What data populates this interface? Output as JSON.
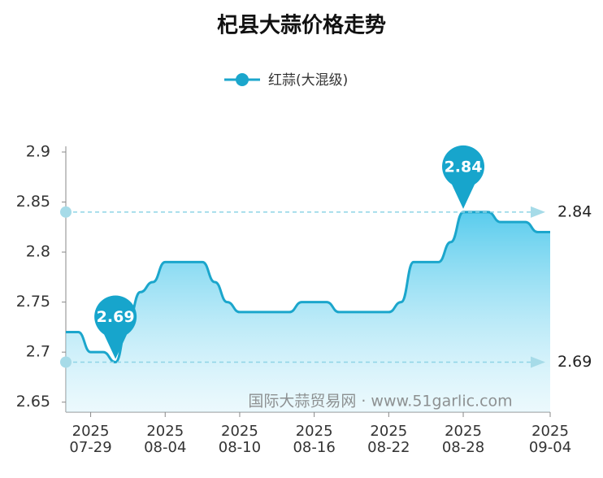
{
  "chart_data": {
    "type": "line",
    "title": "杞县大蒜价格走势",
    "categories": [
      null,
      null,
      "2025\n07-29",
      null,
      null,
      null,
      null,
      null,
      "2025\n08-04",
      null,
      null,
      null,
      null,
      null,
      "2025\n08-10",
      null,
      null,
      null,
      null,
      null,
      "2025\n08-16",
      null,
      null,
      null,
      null,
      null,
      "2025\n08-22",
      null,
      null,
      null,
      null,
      null,
      "2025\n08-28",
      null,
      null,
      null,
      null,
      null,
      null,
      "2025\n09-04"
    ],
    "series": [
      {
        "name": "红蒜(大混级)",
        "color": "#1ba6cc",
        "values": [
          2.72,
          2.72,
          2.7,
          2.7,
          2.69,
          2.73,
          2.76,
          2.77,
          2.79,
          2.79,
          2.79,
          2.79,
          2.77,
          2.75,
          2.74,
          2.74,
          2.74,
          2.74,
          2.74,
          2.75,
          2.75,
          2.75,
          2.74,
          2.74,
          2.74,
          2.74,
          2.74,
          2.75,
          2.79,
          2.79,
          2.79,
          2.81,
          2.84,
          2.84,
          2.84,
          2.83,
          2.83,
          2.83,
          2.82,
          2.82
        ]
      }
    ],
    "ylim": [
      2.64,
      2.9
    ],
    "yticks": [
      2.65,
      2.7,
      2.75,
      2.8,
      2.85,
      2.9
    ],
    "max_line": 2.84,
    "min_line": 2.69,
    "watermark": "国际大蒜贸易网 · www.51garlic.com"
  }
}
